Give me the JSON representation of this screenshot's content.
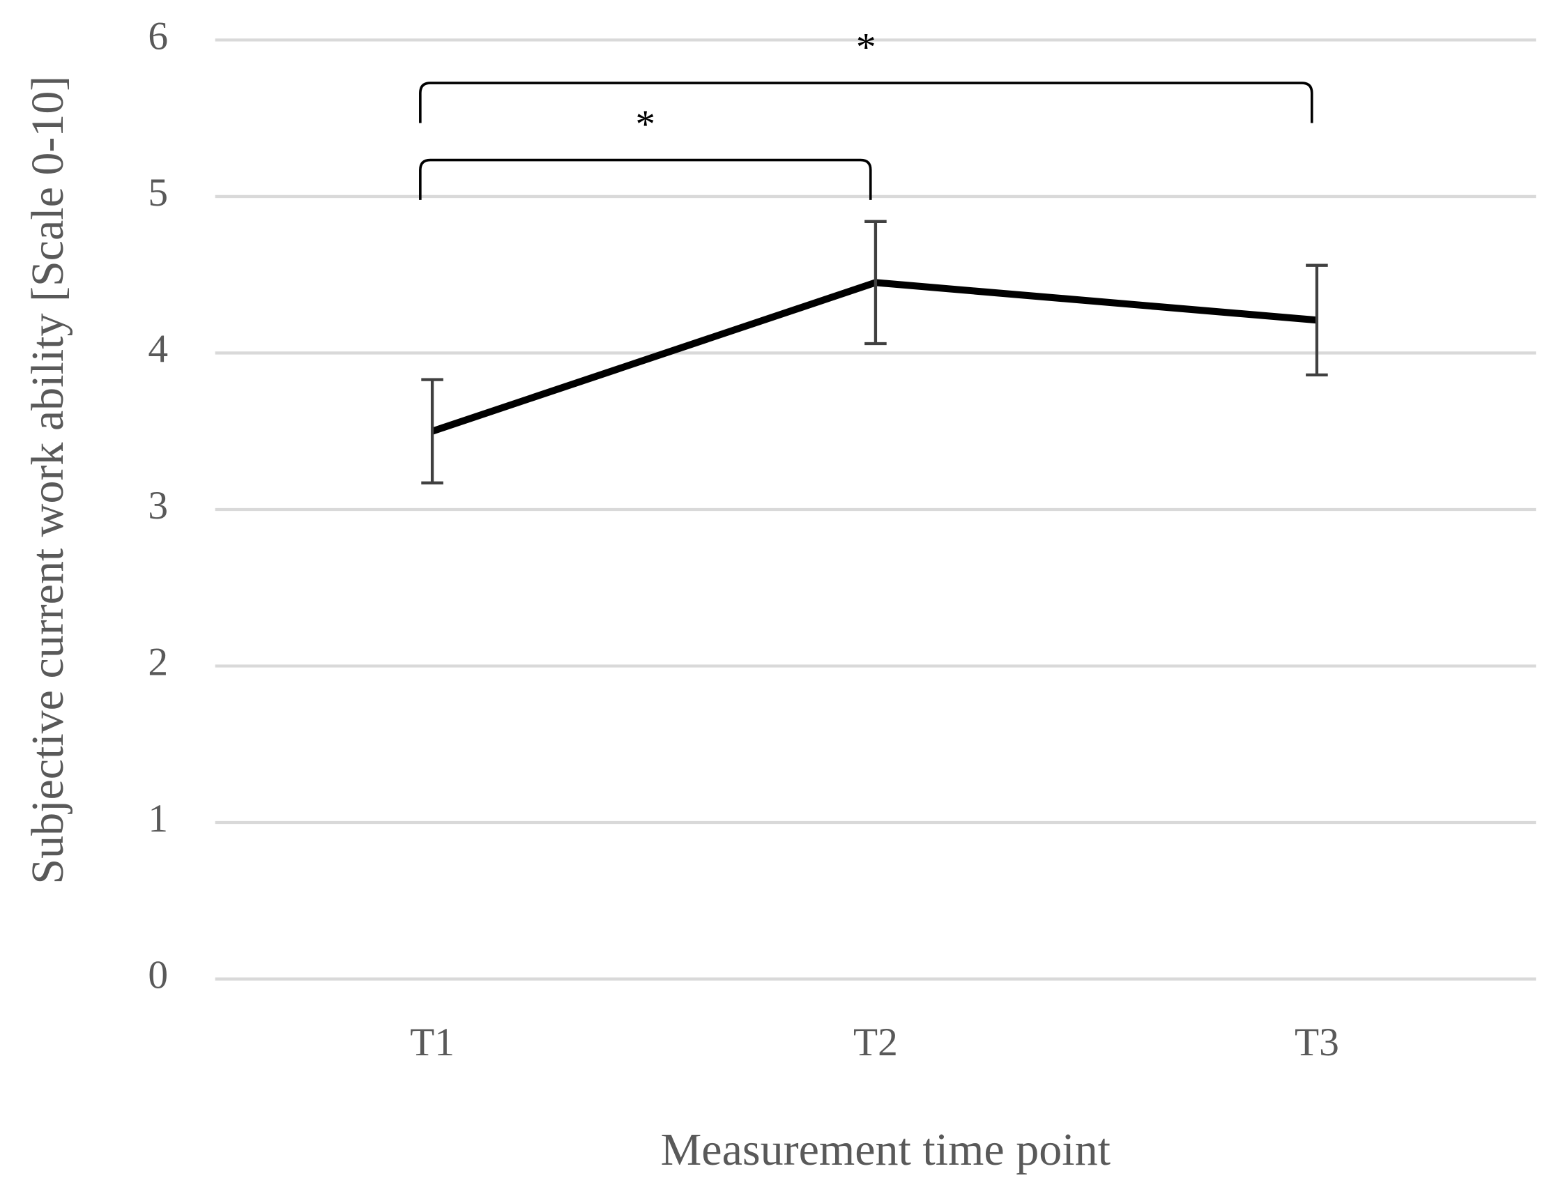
{
  "chart_data": {
    "type": "line",
    "x_label": "Measurement time point",
    "y_label": "Subjective current work ability [Scale 0-10]",
    "categories": [
      "T1",
      "T2",
      "T3"
    ],
    "series": [
      {
        "color": "#000000",
        "values": [
          3.5,
          4.45,
          4.21
        ],
        "errors": [
          0.33,
          0.39,
          0.35
        ]
      }
    ],
    "ylim": [
      0,
      6
    ],
    "yticks": [
      0,
      1,
      2,
      3,
      4,
      5,
      6
    ],
    "grid": true,
    "annotations": [
      {
        "text": "*",
        "between": [
          "T1",
          "T2"
        ]
      },
      {
        "text": "*",
        "between": [
          "T1",
          "T3"
        ]
      }
    ]
  }
}
